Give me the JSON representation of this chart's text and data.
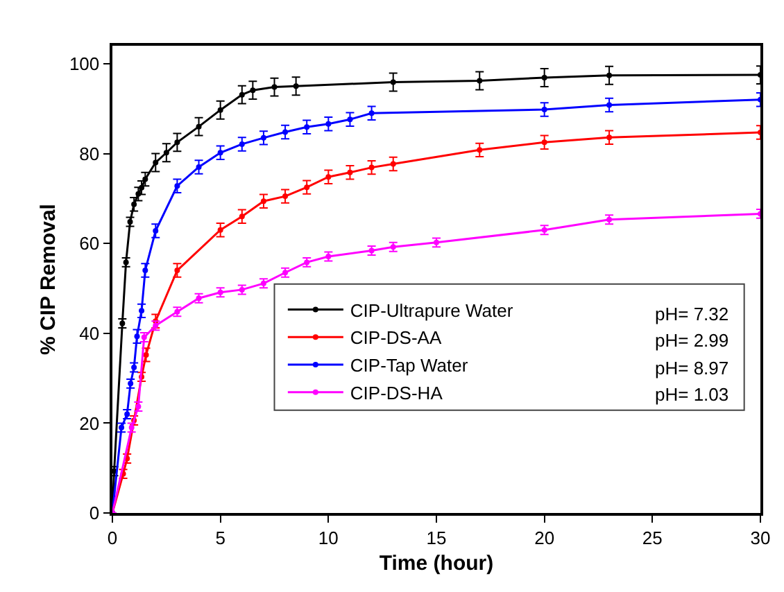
{
  "chart_data": {
    "type": "line",
    "xlabel": "Time (hour)",
    "ylabel": "% CIP Removal",
    "xlim": [
      0,
      30
    ],
    "xticks": [
      0,
      5,
      10,
      15,
      20,
      25,
      30
    ],
    "ylim": [
      0,
      104
    ],
    "yticks": [
      0,
      20,
      40,
      60,
      80,
      100
    ],
    "grid": false,
    "legend": "bottom",
    "marker": "circle",
    "line_style": "solid",
    "annotations": [
      "pH= 7.32",
      "pH= 2.99",
      "pH= 8.97",
      "pH= 1.03"
    ],
    "series": [
      {
        "name": "CIP-Ultrapure Water",
        "color": "#000000",
        "x": [
          0,
          0.08,
          0.46,
          0.63,
          0.82,
          1.0,
          1.2,
          1.35,
          1.52,
          2.0,
          2.5,
          3.0,
          4.0,
          5.0,
          6.0,
          6.5,
          7.5,
          8.5,
          13,
          17,
          20,
          23,
          30
        ],
        "values": [
          0,
          9.3,
          42.2,
          55.8,
          64.8,
          68.7,
          71,
          72.4,
          74.3,
          78,
          80.2,
          82.5,
          86,
          89.7,
          93.1,
          94.1,
          94.8,
          95,
          95.9,
          96.2,
          96.9,
          97.4,
          97.5
        ],
        "errors": [
          0,
          1,
          1,
          1,
          1,
          1.5,
          1.5,
          1.5,
          1.5,
          2,
          2,
          2,
          2,
          2,
          2,
          2,
          2,
          2,
          2,
          2,
          2,
          2,
          2
        ]
      },
      {
        "name": "CIP-DS-AA",
        "color": "#ff0000",
        "x": [
          0,
          0.5,
          0.68,
          1.0,
          1.35,
          1.56,
          2.0,
          3.0,
          5.0,
          6.0,
          7.0,
          8.0,
          9.0,
          10,
          11,
          12,
          13,
          17,
          20,
          23,
          30
        ],
        "values": [
          0,
          8.7,
          12.1,
          20.6,
          30.3,
          35.2,
          42.7,
          54,
          63,
          66,
          69.4,
          70.5,
          72.5,
          74.8,
          75.8,
          76.9,
          77.7,
          80.8,
          82.5,
          83.6,
          84.7
        ],
        "errors": [
          0,
          1,
          1,
          1,
          1,
          1.5,
          1.5,
          1.5,
          1.5,
          1.5,
          1.5,
          1.5,
          1.5,
          1.5,
          1.5,
          1.5,
          1.5,
          1.5,
          1.5,
          1.5,
          1.5
        ]
      },
      {
        "name": "CIP-Tap Water",
        "color": "#0000ff",
        "x": [
          0,
          0.42,
          0.68,
          0.84,
          1.0,
          1.14,
          1.35,
          1.52,
          2.0,
          3.0,
          4.0,
          5.0,
          6.0,
          7.0,
          8.0,
          9.0,
          10,
          11,
          12,
          20,
          23,
          30
        ],
        "values": [
          0,
          19,
          22,
          28.8,
          32.4,
          39.3,
          45,
          54,
          62.8,
          72.8,
          77,
          80.2,
          82.1,
          83.5,
          84.8,
          85.9,
          86.6,
          87.6,
          89,
          89.8,
          90.8,
          92
        ],
        "errors": [
          0,
          1,
          1,
          1,
          1,
          1.5,
          1.5,
          1.5,
          1.5,
          1.5,
          1.5,
          1.5,
          1.5,
          1.5,
          1.5,
          1.5,
          1.5,
          1.5,
          1.5,
          1.5,
          1.5,
          1.5
        ]
      },
      {
        "name": "CIP-DS-HA",
        "color": "#ff00ff",
        "x": [
          0,
          0.89,
          1.2,
          1.47,
          2.0,
          3.0,
          4.0,
          5.0,
          6.0,
          7.0,
          8.0,
          9.0,
          10,
          12,
          13,
          15,
          20,
          23,
          30
        ],
        "values": [
          0,
          19,
          23.7,
          39.1,
          41.7,
          44.8,
          47.8,
          49.1,
          49.7,
          51.1,
          53.5,
          55.8,
          57.1,
          58.4,
          59.2,
          60.2,
          63,
          65.3,
          66.6
        ],
        "errors": [
          0,
          1,
          1,
          1,
          1,
          1,
          1,
          1,
          1,
          1,
          1,
          1,
          1,
          1,
          1,
          1,
          1,
          1,
          1
        ]
      }
    ]
  }
}
